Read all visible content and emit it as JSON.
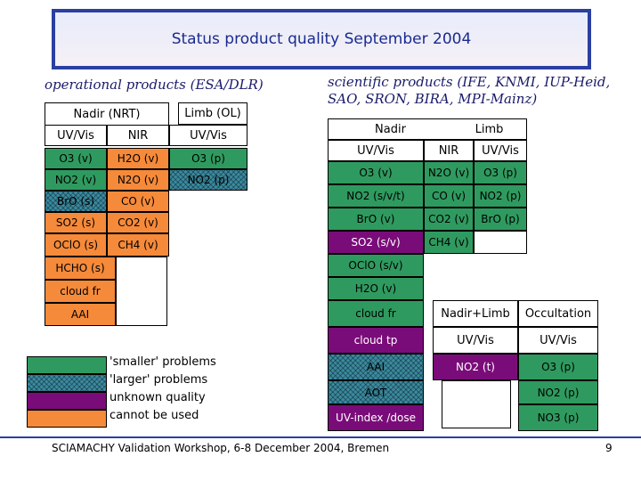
{
  "title": "Status product quality September 2004",
  "operational": {
    "heading": "operational products (ESA/DLR)",
    "nadir_header": "Nadir (NRT)",
    "limb_header": "Limb (OL)",
    "col_uvvis": "UV/Vis",
    "col_nir": "NIR",
    "col_limb_uvvis": "UV/Vis",
    "uvvis": [
      "O3 (v)",
      "NO2 (v)",
      "BrO (s)",
      "SO2 (s)",
      "OClO (s)",
      "HCHO (s)",
      "cloud fr",
      "AAI"
    ],
    "nir": [
      "H2O (v)",
      "N2O (v)",
      "CO (v)",
      "CO2 (v)",
      "CH4 (v)"
    ],
    "limb": [
      "O3 (p)",
      "NO2 (p)"
    ]
  },
  "scientific": {
    "heading_line1": "scientific products (IFE, KNMI, IUP-Heid,",
    "heading_line2": "SAO, SRON, BIRA, MPI-Mainz)",
    "nadir_header": "Nadir",
    "limb_header": "Limb",
    "col_uvvis": "UV/Vis",
    "col_nir": "NIR",
    "col_limb_uvvis": "UV/Vis",
    "uvvis": [
      "O3 (v)",
      "NO2 (s/v/t)",
      "BrO (v)",
      "SO2 (s/v)",
      "OClO (s/v)",
      "H2O (v)",
      "cloud fr",
      "cloud tp",
      "AAI",
      "AOT",
      "UV-index /dose"
    ],
    "nir": [
      "N2O (v)",
      "CO (v)",
      "CO2 (v)",
      "CH4 (v)"
    ],
    "limb": [
      "O3 (p)",
      "NO2 (p)",
      "BrO (p)"
    ],
    "nadir_limb_header": "Nadir+Limb",
    "occultation_header": "Occultation",
    "nl_col": "UV/Vis",
    "occ_col": "UV/Vis",
    "nadir_limb": [
      "NO2 (t)"
    ],
    "occultation": [
      "O3 (p)",
      "NO2 (p)",
      "NO3 (p)"
    ]
  },
  "legend": [
    "'smaller' problems",
    "'larger' problems",
    "unknown quality",
    "cannot be used"
  ],
  "footer": "SCIAMACHY Validation Workshop, 6-8 December 2004, Bremen",
  "page_number": "9",
  "colors": {
    "green": "#2f9a5f",
    "hatched": "#3a8aa0",
    "purple": "#7a0c7a",
    "orange": "#f58a3a",
    "title_border": "#2b3fa0"
  }
}
